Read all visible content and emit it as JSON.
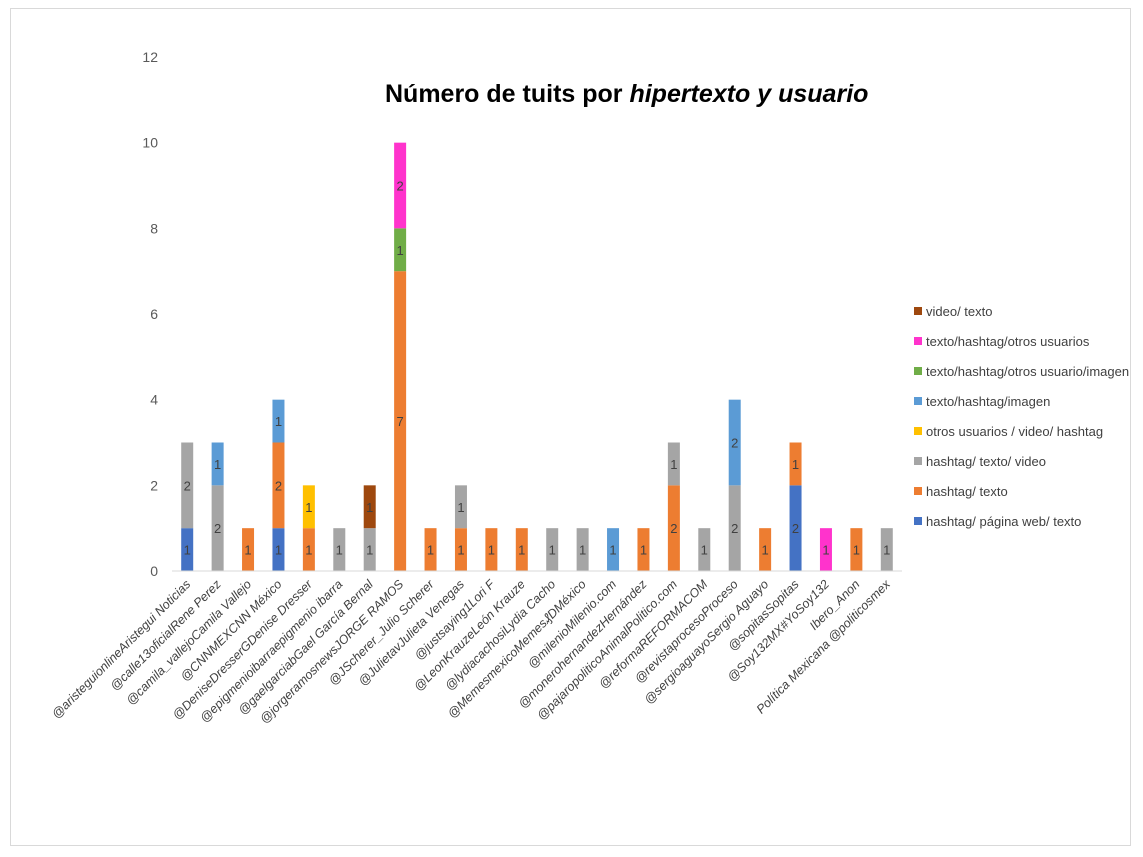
{
  "chart_data": {
    "type": "bar",
    "stacked": true,
    "title": "Número de tuits por hipertexto y usuario",
    "title_parts": [
      {
        "text": "Número de tuits por ",
        "italic": false
      },
      {
        "text": "hipertexto  y usuario",
        "italic": true
      }
    ],
    "xlabel": "",
    "ylabel": "",
    "ylim": [
      0,
      12
    ],
    "yticks": [
      0,
      2,
      4,
      6,
      8,
      10,
      12
    ],
    "grid": false,
    "legend_position": "right",
    "categories": [
      "@aristeguionlineAristegui Noticias",
      "@calle13oficialRene Perez",
      "@camila_vallejoCamila Vallejo",
      "@CNNMEXCNN México",
      "@DeniseDresserGDenise Dresser",
      "@epigmenioibarraepigmenio ibarra",
      "@gaelgarciabGael García Bernal",
      "@jorgeramosnewsJORGE RAMOS",
      "@JScherer_Julio Scherer",
      "@JulietavJulieta Venegas",
      "@justsaying1Lori F",
      "@LeonKrauzeLeón Krauze",
      "@lydiacachosiLydia Cacho",
      "@MemesmexicoMemes₰DMéxico",
      "@milenioMilenio.com",
      "@monerohernandezHernández",
      "@pajaropoliticoAnimalPolitico.com",
      "@reformaREFORMACOM",
      "@revistaprocesoProceso",
      "@sergioaguayoSergio Aguayo",
      "@sopitasSopitas",
      "@Soy132MX#YoSoy132",
      "Ibero_Anon",
      "Política Mexicana @politicosmex"
    ],
    "series": [
      {
        "name": "hashtag/ página web/ texto",
        "color": "#4472c4",
        "values": [
          1,
          0,
          0,
          1,
          0,
          0,
          0,
          0,
          0,
          0,
          0,
          0,
          0,
          0,
          0,
          0,
          0,
          0,
          0,
          0,
          2,
          0,
          0,
          0
        ]
      },
      {
        "name": "hashtag/ texto",
        "color": "#ed7d31",
        "values": [
          0,
          0,
          1,
          2,
          1,
          0,
          0,
          7,
          1,
          1,
          1,
          1,
          0,
          0,
          0,
          1,
          2,
          0,
          0,
          1,
          1,
          0,
          1,
          0
        ]
      },
      {
        "name": "hashtag/ texto/ video",
        "color": "#a5a5a5",
        "values": [
          2,
          2,
          0,
          0,
          0,
          1,
          1,
          0,
          0,
          1,
          0,
          0,
          1,
          1,
          0,
          0,
          1,
          1,
          2,
          0,
          0,
          0,
          0,
          1
        ]
      },
      {
        "name": "otros usuarios / video/ hashtag",
        "color": "#ffc000",
        "values": [
          0,
          0,
          0,
          0,
          1,
          0,
          0,
          0,
          0,
          0,
          0,
          0,
          0,
          0,
          0,
          0,
          0,
          0,
          0,
          0,
          0,
          0,
          0,
          0
        ]
      },
      {
        "name": "texto/hashtag/imagen",
        "color": "#5b9bd5",
        "values": [
          0,
          1,
          0,
          1,
          0,
          0,
          0,
          0,
          0,
          0,
          0,
          0,
          0,
          0,
          1,
          0,
          0,
          0,
          2,
          0,
          0,
          0,
          0,
          0
        ]
      },
      {
        "name": "texto/hashtag/otros usuario/imagen",
        "color": "#70ad47",
        "values": [
          0,
          0,
          0,
          0,
          0,
          0,
          0,
          1,
          0,
          0,
          0,
          0,
          0,
          0,
          0,
          0,
          0,
          0,
          0,
          0,
          0,
          0,
          0,
          0
        ]
      },
      {
        "name": "texto/hashtag/otros usuarios",
        "color": "#ff33cc",
        "values": [
          0,
          0,
          0,
          0,
          0,
          0,
          0,
          2,
          0,
          0,
          0,
          0,
          0,
          0,
          0,
          0,
          0,
          0,
          0,
          0,
          0,
          1,
          0,
          0
        ]
      },
      {
        "name": "video/ texto",
        "color": "#9e480e",
        "values": [
          0,
          0,
          0,
          0,
          0,
          0,
          1,
          0,
          0,
          0,
          0,
          0,
          0,
          0,
          0,
          0,
          0,
          0,
          0,
          0,
          0,
          0,
          0,
          0
        ]
      }
    ]
  }
}
